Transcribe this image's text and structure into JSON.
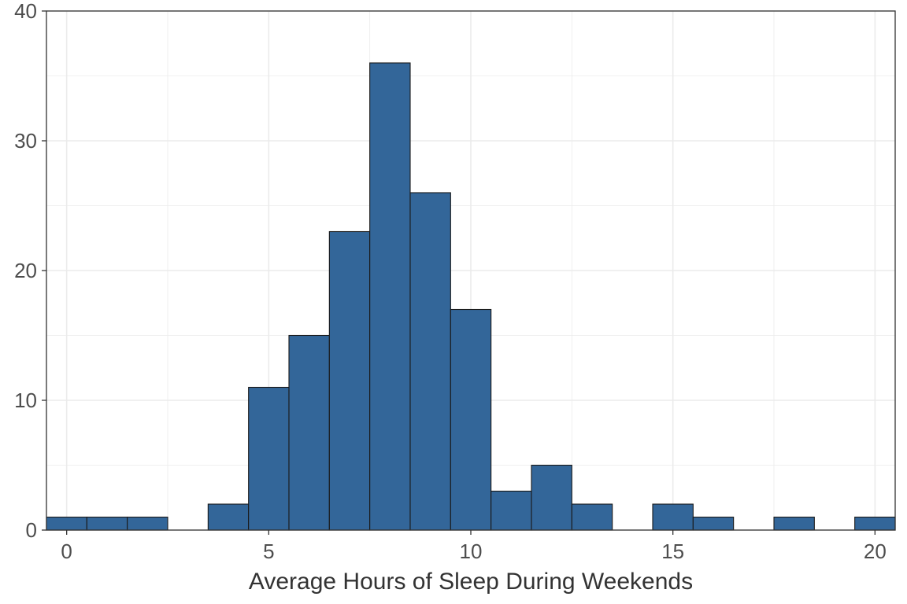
{
  "chart_data": {
    "type": "bar",
    "title": "",
    "xlabel": "Average Hours of Sleep During Weekends",
    "ylabel": "",
    "bin_width": 1,
    "x": [
      0,
      1,
      2,
      3,
      4,
      5,
      6,
      7,
      8,
      9,
      10,
      11,
      12,
      13,
      14,
      15,
      16,
      17,
      18,
      19,
      20
    ],
    "values": [
      1,
      1,
      1,
      0,
      2,
      11,
      15,
      23,
      36,
      26,
      17,
      3,
      5,
      2,
      0,
      2,
      1,
      0,
      1,
      0,
      1
    ],
    "xlim": [
      -0.5,
      20.5
    ],
    "ylim": [
      0,
      40
    ],
    "x_ticks": [
      0,
      5,
      10,
      15,
      20
    ],
    "y_ticks": [
      0,
      10,
      20,
      30,
      40
    ],
    "x_tick_labels": [
      "0",
      "5",
      "10",
      "15",
      "20"
    ],
    "y_tick_labels": [
      "0",
      "10",
      "20",
      "30",
      "40"
    ],
    "grid": true,
    "bar_fill": "#336699",
    "bar_edge": "#1a1a1a",
    "grid_color": "#ebebeb"
  }
}
